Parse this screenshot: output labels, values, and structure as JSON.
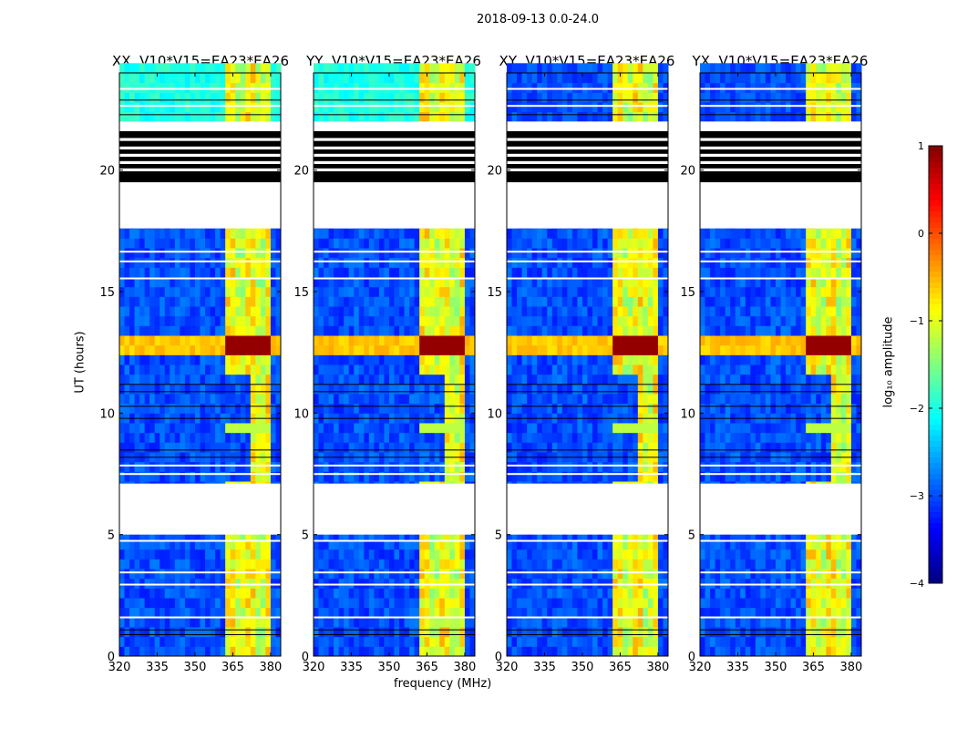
{
  "chart_data": {
    "type": "heatmap",
    "suptitle": "2018-09-13 0.0-24.0",
    "panels": [
      {
        "title": "XX, V10*V15=EA23*EA26",
        "top_level": -2.0
      },
      {
        "title": "YY, V10*V15=EA23*EA26",
        "top_level": -2.0
      },
      {
        "title": "XY, V10*V15=EA23*EA26",
        "top_level": -3.0
      },
      {
        "title": "YX, V10*V15=EA23*EA26",
        "top_level": -3.0
      }
    ],
    "xlabel": "frequency (MHz)",
    "ylabel": "UT (hours)",
    "xlim": [
      320,
      384
    ],
    "ylim": [
      0,
      24
    ],
    "xticks": [
      320,
      335,
      350,
      365,
      380
    ],
    "yticks": [
      0,
      5,
      10,
      15,
      20
    ],
    "xtick_labels": [
      "320",
      "335",
      "350",
      "365",
      "380"
    ],
    "ytick_labels": [
      "0",
      "5",
      "10",
      "15",
      "20"
    ],
    "background_level": -3.0,
    "rfi_band_mhz": [
      361,
      380
    ],
    "rfi_level": -1.0,
    "bright_event_hours": [
      12.2,
      13.2
    ],
    "bright_event_level": 1.0,
    "flagged_hours": [
      [
        5.0,
        7.1
      ],
      [
        17.6,
        19.5
      ],
      [
        21.6,
        22.0
      ]
    ],
    "black_stripe_hours": [
      19.5,
      21.6
    ],
    "colorbar": {
      "label": "log₁₀ amplitude",
      "range": [
        -4,
        1
      ],
      "ticks": [
        1,
        0,
        -1,
        -2,
        -3,
        -4
      ],
      "tick_labels": [
        "1",
        "0",
        "−1",
        "−2",
        "−3",
        "−4"
      ]
    }
  }
}
